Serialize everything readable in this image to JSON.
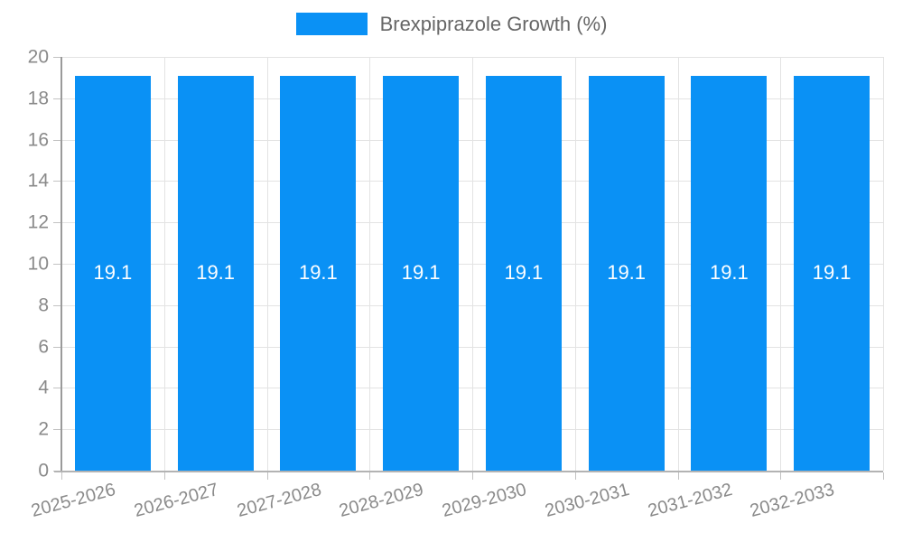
{
  "legend": {
    "label": "Brexpiprazole Growth (%)",
    "swatch_color": "#0a91f5"
  },
  "chart_data": {
    "type": "bar",
    "title": "",
    "categories": [
      "2025-2026",
      "2026-2027",
      "2027-2028",
      "2028-2029",
      "2029-2030",
      "2030-2031",
      "2031-2032",
      "2032-2033"
    ],
    "series": [
      {
        "name": "Brexpiprazole Growth (%)",
        "values": [
          19.1,
          19.1,
          19.1,
          19.1,
          19.1,
          19.1,
          19.1,
          19.1
        ]
      }
    ],
    "bar_labels": [
      "19.1",
      "19.1",
      "19.1",
      "19.1",
      "19.1",
      "19.1",
      "19.1",
      "19.1"
    ],
    "xlabel": "",
    "ylabel": "",
    "ylim": [
      0,
      20
    ],
    "ytick_step": 2,
    "ytick_labels": [
      "0",
      "2",
      "4",
      "6",
      "8",
      "10",
      "12",
      "14",
      "16",
      "18",
      "20"
    ],
    "grid": true,
    "legend_position": "top-center",
    "x_label_rotation_deg": -15,
    "colors": {
      "bar": "#0a91f5",
      "bar_label_text": "#ffffff",
      "axis_tick_text": "#8a8a8a",
      "legend_text": "#666666",
      "gridline": "#e3e3e3",
      "axis_line": "#9a9a9a"
    }
  }
}
